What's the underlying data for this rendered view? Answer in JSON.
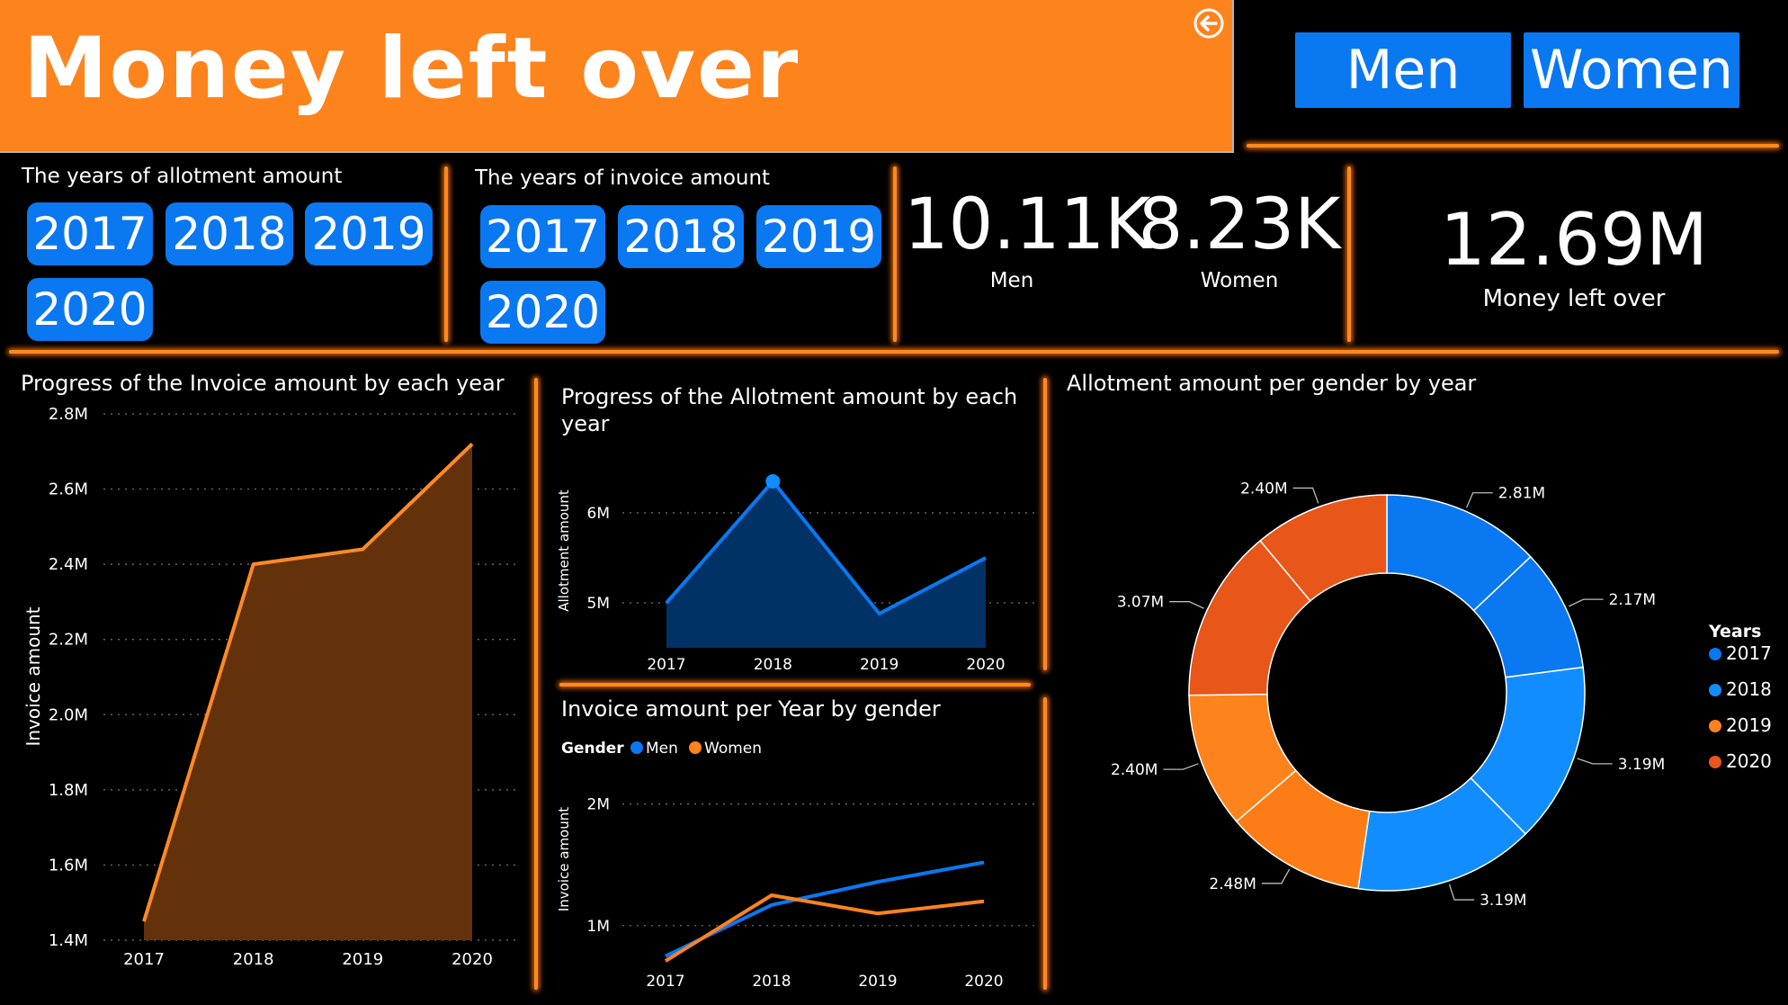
{
  "header": {
    "title": "Money left over"
  },
  "gender_buttons": [
    "Men",
    "Women"
  ],
  "slicers": {
    "allotment": {
      "label": "The years of allotment amount",
      "years": [
        "2017",
        "2018",
        "2019",
        "2020"
      ]
    },
    "invoice": {
      "label": "The years of invoice amount",
      "years": [
        "2017",
        "2018",
        "2019",
        "2020"
      ]
    }
  },
  "kpis": {
    "men": {
      "value": "10.11K",
      "label": "Men"
    },
    "women": {
      "value": "8.23K",
      "label": "Women"
    },
    "money": {
      "value": "12.69M",
      "label": "Money left over"
    }
  },
  "colors": {
    "accent": "#fd831d",
    "blue": "#0a78f0",
    "blue_light": "#118dff",
    "orange_dark": "#e8561a",
    "glow": "#ff8a1a"
  },
  "chart_data": [
    {
      "id": "invoice_progress",
      "type": "area",
      "title": "Progress of the Invoice amount by each year",
      "ylabel": "Invoice amount",
      "categories": [
        "2017",
        "2018",
        "2019",
        "2020"
      ],
      "values": [
        1.45,
        2.4,
        2.44,
        2.72
      ],
      "ylim": [
        1.4,
        2.8
      ],
      "yticks": [
        "1.4M",
        "1.6M",
        "1.8M",
        "2.0M",
        "2.2M",
        "2.4M",
        "2.6M",
        "2.8M"
      ],
      "grid": true
    },
    {
      "id": "allotment_progress",
      "type": "area",
      "title": "Progress of the Allotment amount by each year",
      "ylabel": "Allotment amount",
      "categories": [
        "2017",
        "2018",
        "2019",
        "2020"
      ],
      "values": [
        5.0,
        6.35,
        4.88,
        5.5
      ],
      "ylim": [
        4.5,
        6.6
      ],
      "yticks": [
        "5M",
        "6M"
      ],
      "grid": true
    },
    {
      "id": "invoice_by_gender",
      "type": "line",
      "title": "Invoice amount per Year by gender",
      "ylabel": "Invoice amount",
      "legend_title": "Gender",
      "categories": [
        "2017",
        "2018",
        "2019",
        "2020"
      ],
      "series": [
        {
          "name": "Men",
          "values": [
            0.75,
            1.17,
            1.36,
            1.52
          ]
        },
        {
          "name": "Women",
          "values": [
            0.71,
            1.25,
            1.1,
            1.2
          ]
        }
      ],
      "ylim": [
        0.4,
        2.1
      ],
      "yticks": [
        "1M",
        "2M"
      ],
      "grid": true
    },
    {
      "id": "allotment_by_gender",
      "type": "pie",
      "title": "Allotment amount per gender by year",
      "legend_title": "Years",
      "legend": [
        "2017",
        "2018",
        "2019",
        "2020"
      ],
      "slices": [
        {
          "label": "2.81M",
          "value": 2.81
        },
        {
          "label": "2.17M",
          "value": 2.17
        },
        {
          "label": "3.19M",
          "value": 3.19
        },
        {
          "label": "3.19M",
          "value": 3.19
        },
        {
          "label": "2.48M",
          "value": 2.48
        },
        {
          "label": "2.40M",
          "value": 2.4
        },
        {
          "label": "3.07M",
          "value": 3.07
        },
        {
          "label": "2.40M",
          "value": 2.4
        }
      ],
      "legend_placement": "right"
    }
  ]
}
